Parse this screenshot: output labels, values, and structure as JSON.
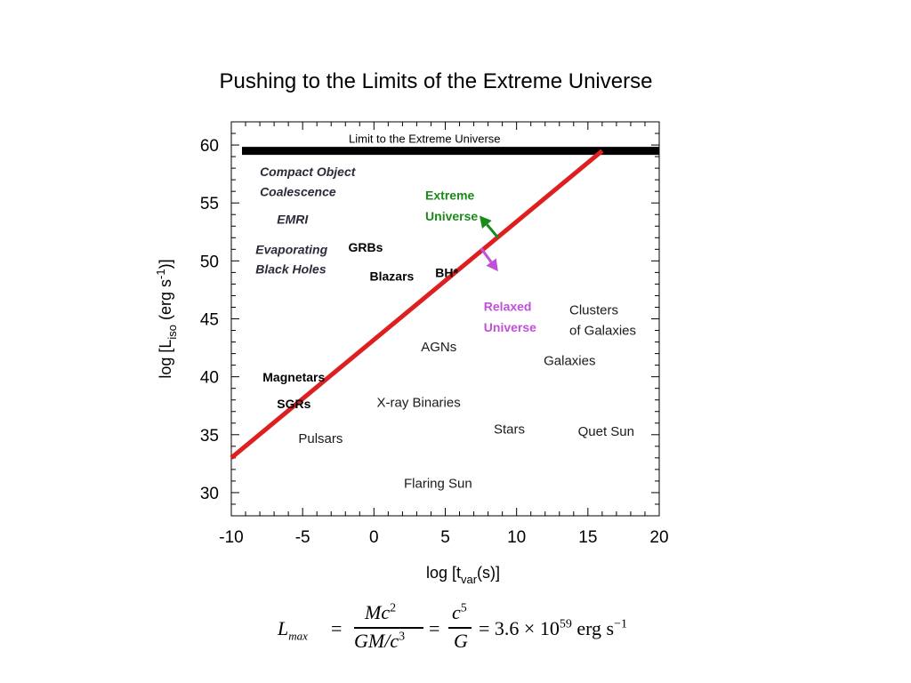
{
  "slide_title": "Pushing to the Limits of the Extreme Universe",
  "chart_data": {
    "type": "scatter",
    "title": "",
    "xlabel": {
      "main": "log [t",
      "sub": "var",
      "tail": "(s)]"
    },
    "ylabel": {
      "main": "log [L",
      "sub": "iso",
      "mid": " (erg s",
      "sup": "-1",
      "tail": ")]"
    },
    "xlim": [
      -10,
      20
    ],
    "ylim": [
      28,
      62
    ],
    "xticks": [
      -10,
      -5,
      0,
      5,
      10,
      15,
      20
    ],
    "yticks": [
      30,
      35,
      40,
      45,
      50,
      55,
      60
    ],
    "grid": false,
    "limit_line": {
      "y": 59.5,
      "label": "Limit to the Extreme Universe"
    },
    "trend_line": {
      "x": [
        -10,
        16
      ],
      "y": [
        33,
        59.5
      ],
      "color": "#dd1f1f"
    },
    "annotations": [
      {
        "text": "Compact Object",
        "x": -8,
        "y": 57.3,
        "style": "italic-bold",
        "color": "#2b2b3a"
      },
      {
        "text": "Coalescence",
        "x": -8,
        "y": 55.6,
        "style": "italic-bold",
        "color": "#2b2b3a"
      },
      {
        "text": "EMRI",
        "x": -6.8,
        "y": 53.2,
        "style": "italic-bold",
        "color": "#2b2b3a"
      },
      {
        "text": "Evaporating",
        "x": -8.3,
        "y": 50.6,
        "style": "italic-bold",
        "color": "#2b2b3a"
      },
      {
        "text": "Black Holes",
        "x": -8.3,
        "y": 48.9,
        "style": "italic-bold",
        "color": "#2b2b3a"
      },
      {
        "text": "GRBs",
        "x": -1.8,
        "y": 50.8,
        "style": "bold",
        "color": "#000000"
      },
      {
        "text": "Blazars",
        "x": -0.3,
        "y": 48.3,
        "style": "bold",
        "color": "#000000"
      },
      {
        "text": "BH*",
        "x": 4.3,
        "y": 48.6,
        "style": "bold",
        "color": "#000000"
      },
      {
        "text": "Magnetars",
        "x": -7.8,
        "y": 39.6,
        "style": "bold",
        "color": "#000000"
      },
      {
        "text": "SGRs",
        "x": -6.8,
        "y": 37.3,
        "style": "bold",
        "color": "#000000"
      },
      {
        "text": "AGNs",
        "x": 3.3,
        "y": 42.2,
        "style": "normal",
        "color": "#1a1a1a"
      },
      {
        "text": "X-ray Binaries",
        "x": 0.2,
        "y": 37.4,
        "style": "normal",
        "color": "#1a1a1a"
      },
      {
        "text": "Stars",
        "x": 8.4,
        "y": 35.1,
        "style": "normal",
        "color": "#1a1a1a"
      },
      {
        "text": "Pulsars",
        "x": -5.3,
        "y": 34.3,
        "style": "normal",
        "color": "#1a1a1a"
      },
      {
        "text": "Flaring Sun",
        "x": 2.1,
        "y": 30.4,
        "style": "normal",
        "color": "#1a1a1a"
      },
      {
        "text": "Clusters",
        "x": 13.7,
        "y": 45.4,
        "style": "normal",
        "color": "#1a1a1a"
      },
      {
        "text": "of Galaxies",
        "x": 13.7,
        "y": 43.6,
        "style": "normal",
        "color": "#1a1a1a"
      },
      {
        "text": "Galaxies",
        "x": 11.9,
        "y": 41.0,
        "style": "normal",
        "color": "#1a1a1a"
      },
      {
        "text": "Quet Sun",
        "x": 14.3,
        "y": 34.9,
        "style": "normal",
        "color": "#1a1a1a"
      },
      {
        "text": "Extreme",
        "x": 3.6,
        "y": 55.3,
        "style": "bold",
        "color": "#1a8a1a"
      },
      {
        "text": "Universe",
        "x": 3.6,
        "y": 53.5,
        "style": "bold",
        "color": "#1a8a1a"
      },
      {
        "text": "Relaxed",
        "x": 7.7,
        "y": 45.7,
        "style": "bold",
        "color": "#c050d8"
      },
      {
        "text": "Universe",
        "x": 7.7,
        "y": 43.9,
        "style": "bold",
        "color": "#c050d8"
      }
    ],
    "arrows": [
      {
        "name": "extreme-universe-arrow",
        "from": [
          8.7,
          52.0
        ],
        "to": [
          7.4,
          53.9
        ],
        "color": "#1a8a1a"
      },
      {
        "name": "relaxed-universe-arrow",
        "from": [
          7.5,
          51.1
        ],
        "to": [
          8.7,
          49.1
        ],
        "color": "#c050d8"
      }
    ]
  },
  "formula": {
    "lhs": "L",
    "lhs_sub": "max",
    "eq": "=",
    "num1": "Mc",
    "num1_sup": "2",
    "den1": "GM/c",
    "den1_sup": "3",
    "num2": "c",
    "num2_sup": "5",
    "den2": "G",
    "rhs": "= 3.6 × 10",
    "rhs_sup": "59",
    "rhs_unit": "erg s",
    "rhs_unit_sup": "−1"
  }
}
